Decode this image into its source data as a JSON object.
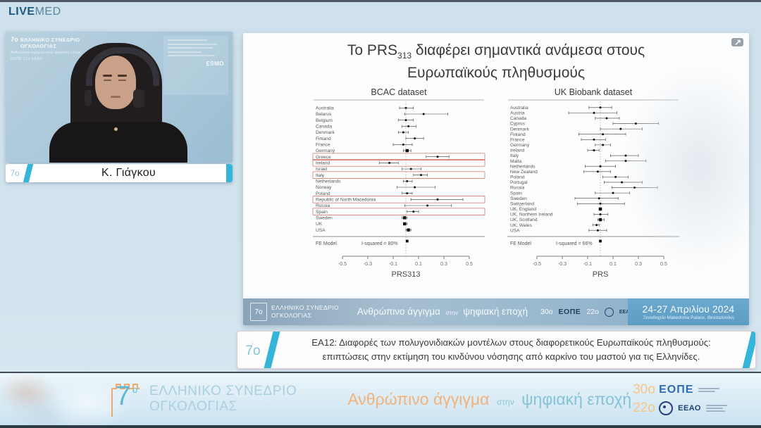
{
  "brand": {
    "live": "LIVE",
    "med": "MED"
  },
  "video": {
    "speaker_name": "Κ. Γιάγκου",
    "badge": "7ο",
    "watermark": {
      "title1": "ΕΛΛΗΝΙΚΟ ΣΥΝΕΔΡΙΟ",
      "title2": "ΟΓΚΟΛΟΓΙΑΣ",
      "tagline": "Ανθρώπινο άγγιγμα στην ψηφιακή εποχή",
      "logos": "ΕΟΠΕ   22ο   ΕΕΑΟ",
      "esmo": "ESMO"
    }
  },
  "slide": {
    "title": {
      "pre": "Το PRS",
      "sub": "313",
      "post": " διαφέρει σημαντικά ανάμεσα στους",
      "line2": "Ευρωπαϊκούς πληθυσμούς"
    }
  },
  "chart_data": [
    {
      "type": "forest",
      "title": "BCAC dataset",
      "xlabel": "PRS313",
      "xticks": [
        "-0.5",
        "-0.3",
        "-0.1",
        "0.1",
        "0.3",
        "0.5"
      ],
      "xlim": [
        -0.55,
        0.55
      ],
      "zero_line": 0,
      "fe_label": "FE Model",
      "i_squared": "I-squared = 80%",
      "fe_est": 0.01,
      "highlight_color": "#d98a7e",
      "highlighted": [
        "Greece",
        "Ireland",
        "Italy",
        "Republic of North Macedonia",
        "Spain"
      ],
      "rows": [
        {
          "label": "Australia",
          "est": 0.0,
          "lo": -0.05,
          "hi": 0.06
        },
        {
          "label": "Belarus",
          "est": 0.14,
          "lo": -0.01,
          "hi": 0.33
        },
        {
          "label": "Belgium",
          "est": 0.0,
          "lo": -0.06,
          "hi": 0.06
        },
        {
          "label": "Canada",
          "est": 0.02,
          "lo": -0.03,
          "hi": 0.08
        },
        {
          "label": "Denmark",
          "est": -0.02,
          "lo": -0.06,
          "hi": 0.02
        },
        {
          "label": "Finland",
          "est": 0.07,
          "lo": 0.0,
          "hi": 0.14
        },
        {
          "label": "France",
          "est": -0.02,
          "lo": -0.1,
          "hi": 0.05
        },
        {
          "label": "Germany",
          "est": 0.01,
          "lo": -0.02,
          "hi": 0.04,
          "m": "s"
        },
        {
          "label": "Greece",
          "est": 0.25,
          "lo": 0.16,
          "hi": 0.34
        },
        {
          "label": "Ireland",
          "est": -0.13,
          "lo": -0.21,
          "hi": -0.06
        },
        {
          "label": "Israel",
          "est": 0.04,
          "lo": -0.03,
          "hi": 0.12
        },
        {
          "label": "Italy",
          "est": 0.12,
          "lo": 0.06,
          "hi": 0.17
        },
        {
          "label": "Netherlands",
          "est": 0.01,
          "lo": -0.02,
          "hi": 0.05
        },
        {
          "label": "Norway",
          "est": 0.07,
          "lo": -0.07,
          "hi": 0.23
        },
        {
          "label": "Poland",
          "est": 0.01,
          "lo": -0.03,
          "hi": 0.05
        },
        {
          "label": "Republic of North Macedonia",
          "est": 0.25,
          "lo": 0.04,
          "hi": 0.45
        },
        {
          "label": "Russia",
          "est": 0.17,
          "lo": -0.01,
          "hi": 0.36
        },
        {
          "label": "Spain",
          "est": 0.06,
          "lo": 0.01,
          "hi": 0.1
        },
        {
          "label": "Sweden",
          "est": -0.01,
          "lo": -0.03,
          "hi": 0.01,
          "m": "s"
        },
        {
          "label": "UK",
          "est": -0.01,
          "lo": -0.02,
          "hi": 0.01,
          "m": "s"
        },
        {
          "label": "USA",
          "est": 0.02,
          "lo": 0.0,
          "hi": 0.04,
          "m": "s"
        }
      ]
    },
    {
      "type": "forest",
      "title": "UK Biobank dataset",
      "xlabel": "PRS",
      "xticks": [
        "-0.5",
        "-0.3",
        "-0.1",
        "0.1",
        "0.3",
        "0.5"
      ],
      "xlim": [
        -0.55,
        0.55
      ],
      "zero_line": 0,
      "fe_label": "FE Model",
      "i_squared": "I-squared = 66%",
      "fe_est": 0.0,
      "highlight_color": "#d98a7e",
      "highlighted": [],
      "rows": [
        {
          "label": "Australia",
          "est": 0.0,
          "lo": -0.09,
          "hi": 0.09
        },
        {
          "label": "Austria",
          "est": -0.05,
          "lo": -0.25,
          "hi": 0.13
        },
        {
          "label": "Canada",
          "est": 0.05,
          "lo": -0.04,
          "hi": 0.15
        },
        {
          "label": "Cyprus",
          "est": 0.28,
          "lo": 0.1,
          "hi": 0.46
        },
        {
          "label": "Denmark",
          "est": 0.16,
          "lo": 0.0,
          "hi": 0.33
        },
        {
          "label": "Finland",
          "est": 0.02,
          "lo": -0.17,
          "hi": 0.2
        },
        {
          "label": "France",
          "est": -0.05,
          "lo": -0.15,
          "hi": 0.04
        },
        {
          "label": "Germany",
          "est": 0.02,
          "lo": -0.04,
          "hi": 0.08
        },
        {
          "label": "Ireland",
          "est": -0.05,
          "lo": -0.1,
          "hi": -0.01
        },
        {
          "label": "Italy",
          "est": 0.2,
          "lo": 0.08,
          "hi": 0.3
        },
        {
          "label": "Malta",
          "est": 0.2,
          "lo": 0.04,
          "hi": 0.36
        },
        {
          "label": "Netherlands",
          "est": 0.0,
          "lo": -0.12,
          "hi": 0.12
        },
        {
          "label": "New Zealand",
          "est": -0.02,
          "lo": -0.13,
          "hi": 0.08
        },
        {
          "label": "Poland",
          "est": 0.12,
          "lo": 0.02,
          "hi": 0.22
        },
        {
          "label": "Portugal",
          "est": 0.17,
          "lo": 0.03,
          "hi": 0.33
        },
        {
          "label": "Russia",
          "est": 0.27,
          "lo": 0.09,
          "hi": 0.45
        },
        {
          "label": "Spain",
          "est": 0.1,
          "lo": -0.04,
          "hi": 0.23
        },
        {
          "label": "Sweden",
          "est": -0.01,
          "lo": -0.2,
          "hi": 0.14
        },
        {
          "label": "Switzerland",
          "est": 0.0,
          "lo": -0.18,
          "hi": 0.19
        },
        {
          "label": "UK, England",
          "est": 0.0,
          "lo": -0.01,
          "hi": 0.01,
          "m": "s"
        },
        {
          "label": "UK, Northern Ireland",
          "est": 0.0,
          "lo": -0.05,
          "hi": 0.06
        },
        {
          "label": "UK, Scotland",
          "est": 0.0,
          "lo": -0.02,
          "hi": 0.03,
          "m": "s"
        },
        {
          "label": "UK, Wales",
          "est": -0.03,
          "lo": -0.06,
          "hi": -0.01
        },
        {
          "label": "USA",
          "est": -0.02,
          "lo": -0.09,
          "hi": 0.05
        }
      ]
    }
  ],
  "slide_footer": {
    "badge": "7ο",
    "name1": "ΕΛΛΗΝΙΚΟ ΣΥΝΕΔΡΙΟ",
    "name2": "ΟΓΚΟΛΟΓΙΑΣ",
    "tagline_a": "Ανθρώπινο άγγιγμα",
    "tagline_b": "στην",
    "tagline_c": "ψηφιακή εποχή",
    "logo_30": "30ο",
    "logo_eope": "ΕΟΠΕ",
    "logo_22": "22ο",
    "logo_eeao": "ΕΕΑΟ",
    "date": "24-27 Απριλίου 2024",
    "venue": "Ξενοδοχείο Makedonia Palace, Θεσσαλονίκη"
  },
  "session": {
    "badge": "7ο",
    "line1": "ΕΑ12: Διαφορές των πολυγονιδιακών μοντέλων στους διαφορετικούς Ευρωπαϊκούς πληθυσμούς:",
    "line2": "επιπτώσεις στην εκτίμηση του κινδύνου νόσησης από καρκίνο του μαστού για τις Ελληνίδες."
  },
  "banner": {
    "badge_num": "7",
    "badge_o": "ο",
    "name1": "ΕΛΛΗΝΙΚΟ ΣΥΝΕΔΡΙΟ",
    "name2": "ΟΓΚΟΛΟΓΙΑΣ",
    "tagline_a": "Ανθρώπινο άγγιγμα",
    "tagline_b": "στην",
    "tagline_c": "ψηφιακή εποχή",
    "logo_30": "30ο",
    "logo_eope": "ΕΟΠΕ",
    "logo_22": "22ο",
    "logo_eeao": "ΕΕΑΟ"
  },
  "colors": {
    "accent_cyan": "#35b6d8",
    "accent_orange": "#f0a96c",
    "highlight_red": "#d98a7e",
    "footer_blue": "#6aa7cd"
  }
}
